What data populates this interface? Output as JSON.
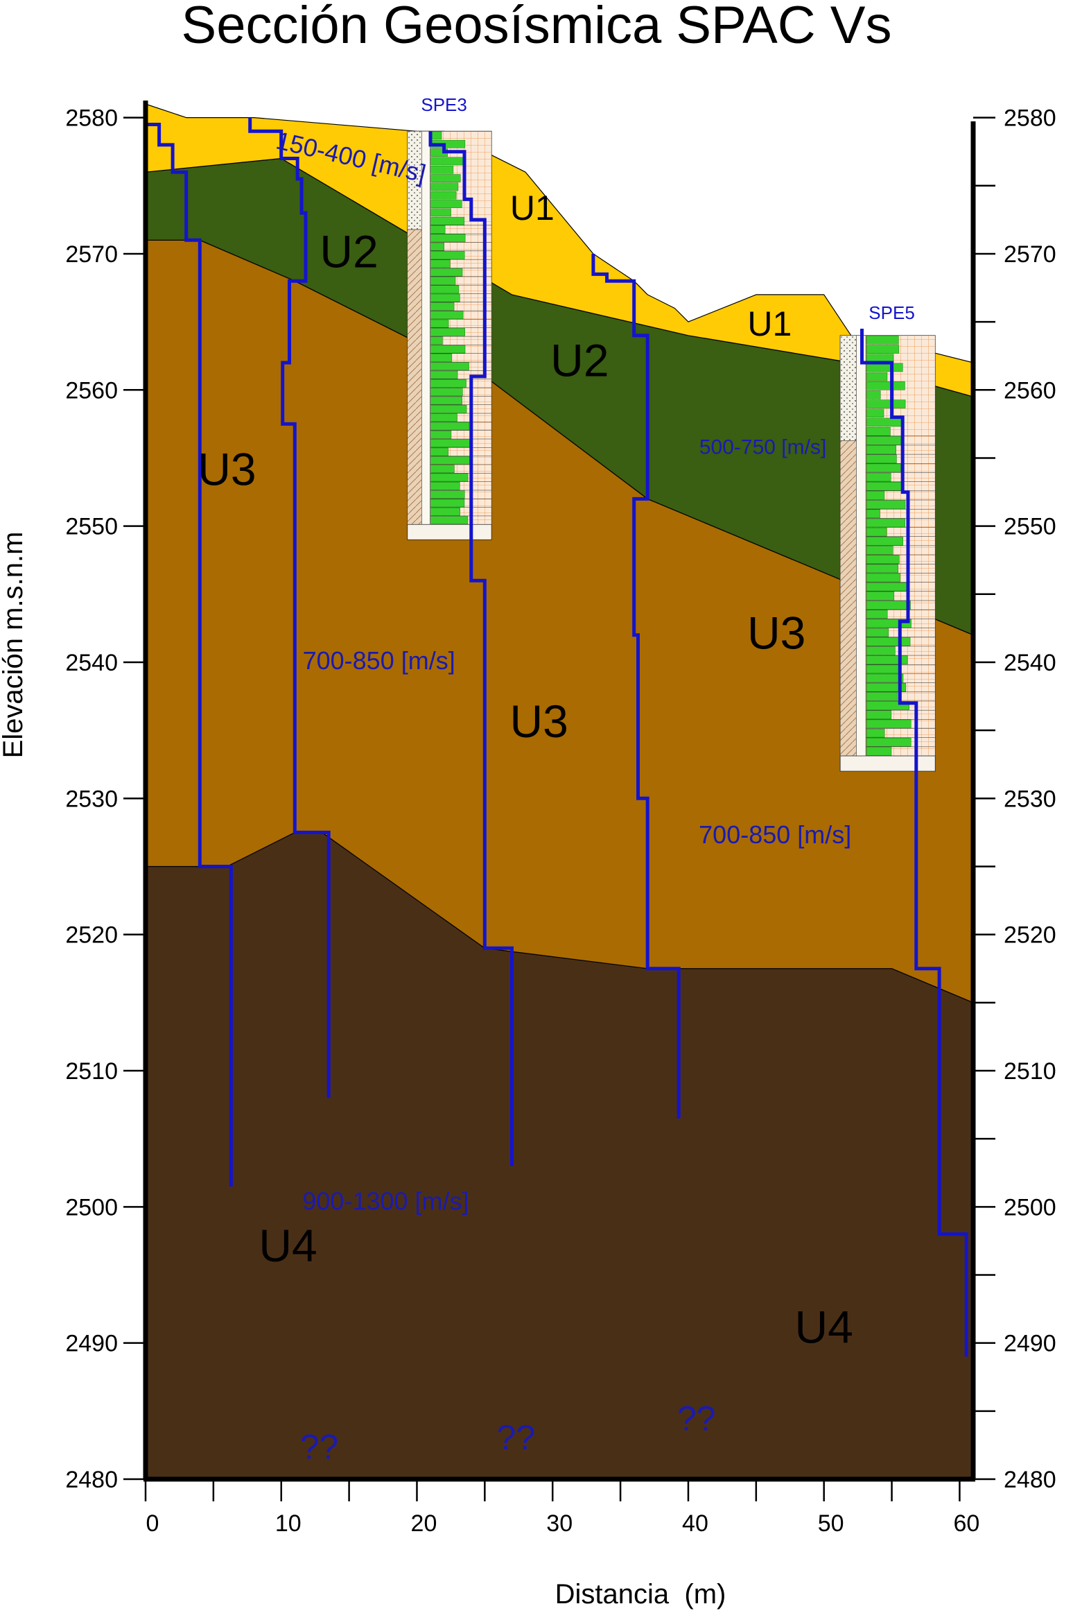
{
  "chart_data": {
    "type": "area",
    "title": "Sección Geosísmica SPAC Vs",
    "xlabel": "Distancia  (m)",
    "ylabel": "Elevación m.s.n.m",
    "xlim": [
      0,
      61
    ],
    "ylim": [
      2480,
      2581
    ],
    "x_ticks": [
      "0",
      "10",
      "20",
      "30",
      "40",
      "50",
      "60"
    ],
    "y_ticks": [
      "2480",
      "2490",
      "2500",
      "2510",
      "2520",
      "2530",
      "2540",
      "2550",
      "2560",
      "2570",
      "2580"
    ],
    "grid": false,
    "colors": {
      "U1": "#ffcb05",
      "U2": "#3a5e12",
      "U3": "#a96b02",
      "U4": "#4a2f17",
      "profile": "#1414cc",
      "label_blue": "#1a1ab0"
    },
    "surfaces": {
      "topography": [
        [
          0,
          2581
        ],
        [
          3,
          2580
        ],
        [
          8,
          2580
        ],
        [
          20,
          2579
        ],
        [
          22,
          2579
        ],
        [
          28,
          2576
        ],
        [
          33,
          2570
        ],
        [
          36,
          2568
        ],
        [
          37,
          2567
        ],
        [
          39,
          2566
        ],
        [
          40,
          2565
        ],
        [
          45,
          2567
        ],
        [
          50,
          2567
        ],
        [
          52,
          2564
        ],
        [
          57,
          2563
        ],
        [
          61,
          2562
        ]
      ],
      "u1_base": [
        [
          0,
          2576
        ],
        [
          10,
          2577
        ],
        [
          27,
          2567
        ],
        [
          40,
          2564
        ],
        [
          52,
          2562
        ],
        [
          61,
          2559.5
        ]
      ],
      "u2_base": [
        [
          0,
          2571
        ],
        [
          4,
          2571
        ],
        [
          11,
          2568
        ],
        [
          25,
          2561
        ],
        [
          37,
          2552
        ],
        [
          61,
          2542
        ]
      ],
      "u3_base": [
        [
          0,
          2525
        ],
        [
          6,
          2525
        ],
        [
          11,
          2527.5
        ],
        [
          13,
          2527.5
        ],
        [
          25,
          2519
        ],
        [
          37,
          2517.5
        ],
        [
          55,
          2517.5
        ],
        [
          61,
          2515
        ]
      ],
      "bottom": 2480
    },
    "units": [
      {
        "name": "U1",
        "label_positions": [
          [
            28.5,
            2572.5
          ],
          [
            46,
            2564
          ]
        ]
      },
      {
        "name": "U2",
        "label_positions": [
          [
            15,
            2569
          ],
          [
            32,
            2561
          ]
        ]
      },
      {
        "name": "U3",
        "label_positions": [
          [
            6,
            2553
          ],
          [
            29,
            2534.5
          ],
          [
            46.5,
            2541
          ]
        ]
      },
      {
        "name": "U4",
        "label_positions": [
          [
            10.5,
            2496
          ],
          [
            50,
            2490
          ]
        ]
      }
    ],
    "velocity_profiles": [
      {
        "points": [
          [
            0,
            2581
          ],
          [
            0,
            2579.5
          ],
          [
            1,
            2579.5
          ],
          [
            1,
            2578
          ],
          [
            2,
            2578
          ],
          [
            2,
            2576
          ],
          [
            3,
            2576
          ],
          [
            3,
            2571
          ],
          [
            4,
            2571
          ],
          [
            4,
            2525
          ],
          [
            6.3,
            2525
          ],
          [
            6.3,
            2501.5
          ]
        ]
      },
      {
        "points": [
          [
            7.7,
            2580
          ],
          [
            7.7,
            2579
          ],
          [
            10,
            2579
          ],
          [
            10,
            2577
          ],
          [
            11.2,
            2577
          ],
          [
            11.2,
            2575.5
          ],
          [
            11.5,
            2575.5
          ],
          [
            11.5,
            2573
          ],
          [
            11.8,
            2573
          ],
          [
            11.8,
            2568
          ],
          [
            10.6,
            2568
          ],
          [
            10.6,
            2562
          ],
          [
            10.1,
            2562
          ],
          [
            10.1,
            2557.5
          ],
          [
            11,
            2557.5
          ],
          [
            11,
            2527.5
          ],
          [
            13.5,
            2527.5
          ],
          [
            13.5,
            2508
          ]
        ]
      },
      {
        "points": [
          [
            21,
            2579
          ],
          [
            21,
            2578
          ],
          [
            22,
            2578
          ],
          [
            22,
            2577.5
          ],
          [
            23.5,
            2577.5
          ],
          [
            23.5,
            2574
          ],
          [
            24,
            2574
          ],
          [
            24,
            2572.5
          ],
          [
            25,
            2572.5
          ],
          [
            25,
            2561
          ],
          [
            24,
            2561
          ],
          [
            24,
            2546
          ],
          [
            25,
            2546
          ],
          [
            25,
            2519
          ],
          [
            27,
            2519
          ],
          [
            27,
            2503
          ]
        ]
      },
      {
        "points": [
          [
            33,
            2570
          ],
          [
            33,
            2568.5
          ],
          [
            34,
            2568.5
          ],
          [
            34,
            2568
          ],
          [
            36,
            2568
          ],
          [
            36,
            2564
          ],
          [
            37,
            2564
          ],
          [
            37,
            2552
          ],
          [
            36,
            2552
          ],
          [
            36,
            2542
          ],
          [
            36.3,
            2542
          ],
          [
            36.3,
            2530
          ],
          [
            37,
            2530
          ],
          [
            37,
            2517.5
          ],
          [
            39.3,
            2517.5
          ],
          [
            39.3,
            2506.5
          ]
        ]
      },
      {
        "points": [
          [
            52.8,
            2564.5
          ],
          [
            52.8,
            2562
          ],
          [
            55,
            2562
          ],
          [
            55,
            2558
          ],
          [
            55.8,
            2558
          ],
          [
            55.8,
            2552.5
          ],
          [
            56.2,
            2552.5
          ],
          [
            56.2,
            2543
          ],
          [
            55.6,
            2543
          ],
          [
            55.6,
            2537
          ],
          [
            56.8,
            2537
          ],
          [
            56.8,
            2517.5
          ],
          [
            58.5,
            2517.5
          ],
          [
            58.5,
            2498
          ],
          [
            60.5,
            2498
          ],
          [
            60.5,
            2489
          ]
        ]
      }
    ],
    "boreholes": [
      {
        "name": "SPE3",
        "x_range": [
          19.3,
          25.5
        ],
        "elev_range": [
          2549,
          2579
        ],
        "name_position": [
          22,
          2580.5
        ]
      },
      {
        "name": "SPE5",
        "x_range": [
          51.2,
          58.2
        ],
        "elev_range": [
          2532,
          2564
        ],
        "name_position": [
          55,
          2565.2
        ]
      }
    ],
    "annotations": [
      {
        "text": "150-400 [m/s]",
        "position": [
          15,
          2576.5
        ],
        "rotate": 13
      },
      {
        "text": "500-750 [m/s]",
        "position": [
          45.5,
          2555.3
        ],
        "rotate": 0
      },
      {
        "text": "700-850 [m/s]",
        "position": [
          17.2,
          2539.5
        ],
        "rotate": 0
      },
      {
        "text": "700-850 [m/s]",
        "position": [
          46.4,
          2526.7
        ],
        "rotate": 0
      },
      {
        "text": "900-1300 [m/s]",
        "position": [
          17.7,
          2499.8
        ],
        "rotate": 0
      },
      {
        "text": "??",
        "position": [
          12.8,
          2481.5
        ],
        "rotate": 0
      },
      {
        "text": "??",
        "position": [
          27.3,
          2482.2
        ],
        "rotate": 0
      },
      {
        "text": "??",
        "position": [
          40.6,
          2483.6
        ],
        "rotate": 0
      }
    ]
  }
}
